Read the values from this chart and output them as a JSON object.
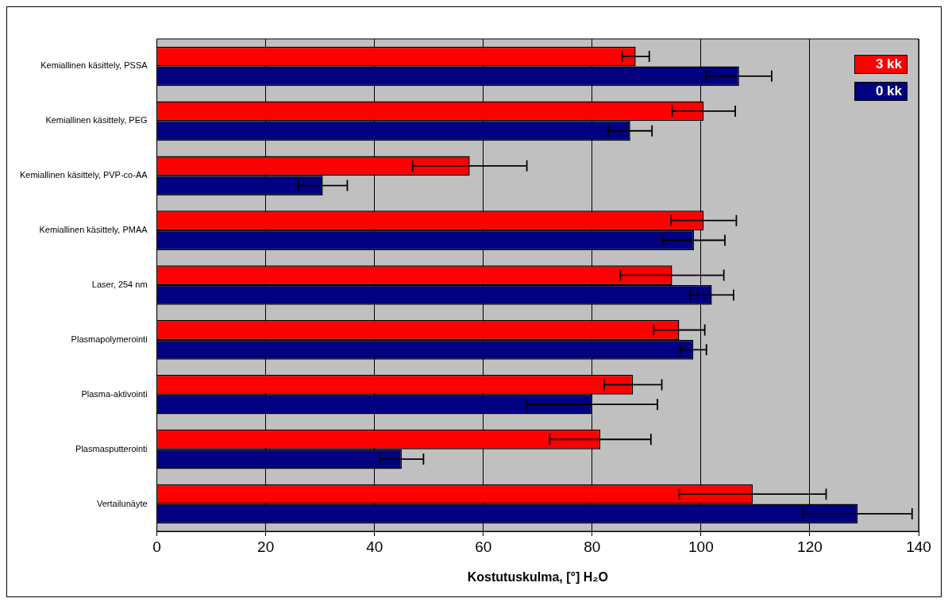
{
  "chart_data": {
    "type": "bar",
    "orientation": "horizontal",
    "xlabel": "Kostutuskulma, [°] H₂O",
    "categories": [
      "Kemiallinen käsittely, PSSA",
      "Kemiallinen käsittely, PEG",
      "Kemiallinen käsittely, PVP-co-AA",
      "Kemiallinen käsittely, PMAA",
      "Laser, 254 nm",
      "Plasmapolymerointi",
      "Plasma-aktivointi",
      "Plasmasputterointi",
      "Vertailunäyte"
    ],
    "series": [
      {
        "name": "3 kk",
        "color": "#ff0000",
        "values": [
          88,
          100.5,
          57.5,
          100.5,
          94.7,
          96,
          87.5,
          81.5,
          109.5
        ],
        "errors": [
          2.5,
          5.8,
          10.5,
          6,
          9.5,
          4.7,
          5.3,
          9.3,
          13.5
        ]
      },
      {
        "name": "0 kk",
        "color": "#000080",
        "values": [
          107,
          87,
          30.5,
          98.7,
          102,
          98.6,
          80,
          45,
          128.8
        ],
        "errors": [
          6,
          4,
          4.5,
          5.7,
          4,
          2.4,
          12,
          4,
          10
        ]
      }
    ],
    "xlim": [
      0,
      140
    ],
    "xticks": [
      0,
      20,
      40,
      60,
      80,
      100,
      120,
      140
    ],
    "grid": "x",
    "legend": "top right"
  }
}
